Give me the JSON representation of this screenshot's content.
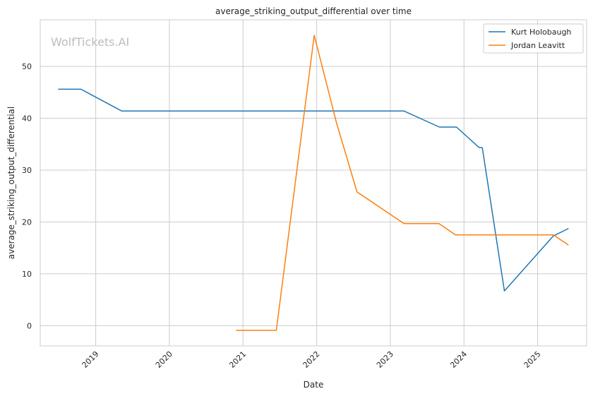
{
  "chart_data": {
    "type": "line",
    "title": "average_striking_output_differential over time",
    "xlabel": "Date",
    "ylabel": "average_striking_output_differential",
    "watermark": "WolfTickets.AI",
    "x_ticks": [
      "2019",
      "2020",
      "2021",
      "2022",
      "2023",
      "2024",
      "2025"
    ],
    "y_ticks": [
      "0",
      "10",
      "20",
      "30",
      "40",
      "50"
    ],
    "xlim": [
      "2018-04-01",
      "2025-09-01"
    ],
    "ylim": [
      -3.9,
      59
    ],
    "grid": true,
    "legend_position": "top-right",
    "series": [
      {
        "name": "Kurt Holobaugh",
        "color": "#1f77b4",
        "points": [
          [
            "2018-07-01",
            45.6
          ],
          [
            "2018-10-20",
            45.6
          ],
          [
            "2019-05-10",
            41.4
          ],
          [
            "2023-03-10",
            41.4
          ],
          [
            "2023-09-01",
            38.3
          ],
          [
            "2023-11-25",
            38.3
          ],
          [
            "2024-03-15",
            34.4
          ],
          [
            "2024-04-01",
            34.3
          ],
          [
            "2024-07-20",
            6.7
          ],
          [
            "2025-03-20",
            17.3
          ],
          [
            "2025-06-01",
            18.7
          ]
        ]
      },
      {
        "name": "Jordan Leavitt",
        "color": "#ff7f0e",
        "points": [
          [
            "2020-11-30",
            -0.9
          ],
          [
            "2021-06-15",
            -0.9
          ],
          [
            "2021-12-20",
            56.0
          ],
          [
            "2022-04-10",
            39.0
          ],
          [
            "2022-07-20",
            25.8
          ],
          [
            "2023-03-10",
            19.7
          ],
          [
            "2023-08-30",
            19.7
          ],
          [
            "2023-11-20",
            17.5
          ],
          [
            "2025-03-20",
            17.5
          ],
          [
            "2025-06-01",
            15.6
          ]
        ]
      }
    ]
  }
}
